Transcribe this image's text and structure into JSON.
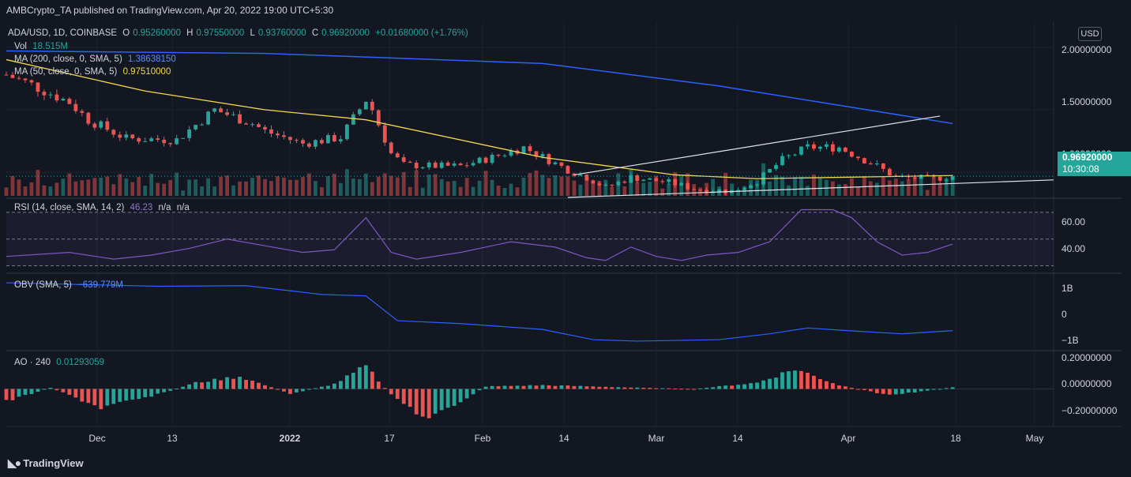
{
  "header": {
    "publisher": "AMBCrypto_TA published on TradingView.com, Apr 20, 2022 19:00 UTC+5:30"
  },
  "main_legend": {
    "symbol": "ADA/USD, 1D, COINBASE",
    "o_label": "O",
    "o": "0.95260000",
    "h_label": "H",
    "h": "0.97550000",
    "l_label": "L",
    "l": "0.93760000",
    "c_label": "C",
    "c": "0.96920000",
    "change": "+0.01680000 (+1.76%)",
    "vol_label": "Vol",
    "vol": "18.515M",
    "ma200_label": "MA (200, close, 0, SMA, 5)",
    "ma200": "1.38638150",
    "ma50_label": "MA (50, close, 0, SMA, 5)",
    "ma50": "0.97510000"
  },
  "rsi_legend": {
    "label": "RSI (14, close, SMA, 14, 2)",
    "value": "46.23",
    "na1": "n/a",
    "na2": "n/a"
  },
  "obv_legend": {
    "label": "OBV (SMA, 5)",
    "value": "−639.779M"
  },
  "ao_legend": {
    "label": "AO · 240",
    "value": "0.01293059"
  },
  "axis": {
    "currency": "USD",
    "price_ticks": [
      "2.00000000",
      "1.50000000",
      "1.00000000"
    ],
    "rsi_ticks": [
      "60.00",
      "40.00"
    ],
    "obv_ticks": [
      "1B",
      "0",
      "−1B"
    ],
    "ao_ticks": [
      "0.20000000",
      "0.00000000",
      "−0.20000000"
    ],
    "price_tag": "0.96920000",
    "countdown": "10:30:08",
    "x_ticks": [
      "Dec",
      "13",
      "2022",
      "17",
      "Feb",
      "14",
      "Mar",
      "14",
      "Apr",
      "18",
      "May"
    ]
  },
  "footer": {
    "brand": "TradingView"
  },
  "colors": {
    "up": "#26a69a",
    "down": "#ef5350",
    "ma200": "#2962ff",
    "ma50": "#f2d94e",
    "rsi": "#7e57c2",
    "obv": "#2962ff"
  },
  "chart_data": [
    {
      "type": "candlestick",
      "title": "ADA/USD, 1D, COINBASE",
      "x_range": [
        "2021-11-21",
        "2022-05-06"
      ],
      "ylim": [
        0.8,
        2.2
      ],
      "anchors": {
        "dates": [
          "2021-11-21",
          "2021-11-25",
          "2021-12-01",
          "2021-12-04",
          "2021-12-10",
          "2021-12-18",
          "2021-12-24",
          "2021-12-30",
          "2022-01-01",
          "2022-01-07",
          "2022-01-13",
          "2022-01-17",
          "2022-01-18",
          "2022-01-21",
          "2022-01-23",
          "2022-01-28",
          "2022-02-01",
          "2022-02-06",
          "2022-02-11",
          "2022-02-18",
          "2022-02-21",
          "2022-02-24",
          "2022-02-28",
          "2022-03-06",
          "2022-03-10",
          "2022-03-16",
          "2022-03-20",
          "2022-03-24",
          "2022-03-28",
          "2022-04-02",
          "2022-04-04",
          "2022-04-08",
          "2022-04-11",
          "2022-04-17",
          "2022-04-20"
        ],
        "close": [
          1.78,
          1.7,
          1.56,
          1.42,
          1.27,
          1.26,
          1.5,
          1.39,
          1.33,
          1.23,
          1.28,
          1.58,
          1.5,
          1.15,
          1.06,
          1.05,
          1.05,
          1.12,
          1.2,
          1.02,
          0.96,
          0.88,
          0.96,
          0.92,
          0.87,
          0.85,
          0.93,
          1.1,
          1.2,
          1.2,
          1.15,
          1.05,
          0.96,
          0.95,
          0.9692
        ]
      },
      "ma200": {
        "dates": [
          "2021-11-21",
          "2022-01-01",
          "2022-02-14",
          "2022-03-14",
          "2022-04-20"
        ],
        "values": [
          1.97,
          1.95,
          1.87,
          1.69,
          1.39
        ]
      },
      "ma50": {
        "dates": [
          "2021-11-21",
          "2021-12-13",
          "2022-01-01",
          "2022-01-17",
          "2022-02-14",
          "2022-03-07",
          "2022-03-20",
          "2022-04-20"
        ],
        "values": [
          1.9,
          1.65,
          1.5,
          1.42,
          1.12,
          0.98,
          0.95,
          0.975
        ]
      },
      "trendlines": [
        {
          "from": [
            "2022-02-19",
            0.98
          ],
          "to": [
            "2022-04-18",
            1.45
          ]
        },
        {
          "from": [
            "2022-02-18",
            0.8
          ],
          "to": [
            "2022-05-06",
            0.94
          ]
        }
      ]
    },
    {
      "type": "line",
      "title": "RSI (14, close, SMA, 14, 2)",
      "bands": [
        70,
        50,
        30
      ],
      "ylim": [
        25,
        80
      ],
      "dates": [
        "2021-11-21",
        "2021-12-01",
        "2021-12-08",
        "2021-12-14",
        "2021-12-20",
        "2021-12-26",
        "2022-01-01",
        "2022-01-07",
        "2022-01-12",
        "2022-01-17",
        "2022-01-21",
        "2022-01-25",
        "2022-02-01",
        "2022-02-09",
        "2022-02-16",
        "2022-02-21",
        "2022-02-24",
        "2022-02-28",
        "2022-03-04",
        "2022-03-08",
        "2022-03-12",
        "2022-03-17",
        "2022-03-22",
        "2022-03-27",
        "2022-04-01",
        "2022-04-04",
        "2022-04-08",
        "2022-04-12",
        "2022-04-16",
        "2022-04-20"
      ],
      "values": [
        37,
        40,
        35,
        38,
        43,
        50,
        45,
        40,
        42,
        66,
        40,
        35,
        40,
        48,
        44,
        36,
        34,
        44,
        37,
        34,
        38,
        40,
        48,
        72,
        72,
        66,
        48,
        38,
        40,
        46.23
      ]
    },
    {
      "type": "line",
      "title": "OBV (SMA, 5)",
      "ylim": [
        -1.3,
        1.3
      ],
      "unit": "B",
      "dates": [
        "2021-11-21",
        "2021-12-01",
        "2021-12-15",
        "2021-12-29",
        "2022-01-10",
        "2022-01-17",
        "2022-01-22",
        "2022-02-01",
        "2022-02-14",
        "2022-02-22",
        "2022-03-01",
        "2022-03-14",
        "2022-03-22",
        "2022-03-28",
        "2022-04-04",
        "2022-04-12",
        "2022-04-20"
      ],
      "values": [
        1.0,
        0.95,
        0.88,
        0.9,
        0.6,
        0.55,
        -0.3,
        -0.4,
        -0.6,
        -0.95,
        -1.0,
        -0.95,
        -0.75,
        -0.55,
        -0.65,
        -0.75,
        -0.64
      ]
    },
    {
      "type": "bar",
      "title": "AO · 240",
      "ylim": [
        -0.3,
        0.3
      ],
      "dates": [
        "2021-11-21",
        "2021-11-28",
        "2021-12-06",
        "2021-12-14",
        "2021-12-21",
        "2021-12-28",
        "2022-01-05",
        "2022-01-12",
        "2022-01-17",
        "2022-01-21",
        "2022-01-27",
        "2022-02-05",
        "2022-02-14",
        "2022-02-22",
        "2022-03-01",
        "2022-03-10",
        "2022-03-20",
        "2022-03-26",
        "2022-04-02",
        "2022-04-10",
        "2022-04-20"
      ],
      "values": [
        -0.1,
        0.01,
        -0.15,
        -0.06,
        0.05,
        0.1,
        -0.04,
        0.04,
        0.18,
        -0.05,
        -0.25,
        0.02,
        0.03,
        0.02,
        0.01,
        0.0,
        0.05,
        0.16,
        0.03,
        -0.05,
        0.013
      ]
    }
  ]
}
